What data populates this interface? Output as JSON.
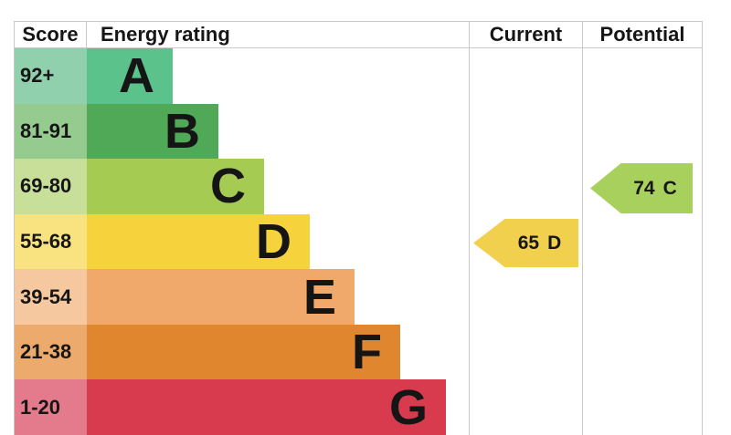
{
  "header": {
    "score": "Score",
    "rating": "Energy rating",
    "current": "Current",
    "potential": "Potential"
  },
  "bands": [
    {
      "letter": "A",
      "score": "92+",
      "bar_color": "#5cc28c",
      "score_color": "#90d0ac"
    },
    {
      "letter": "B",
      "score": "81-91",
      "bar_color": "#4fa957",
      "score_color": "#96cb90"
    },
    {
      "letter": "C",
      "score": "69-80",
      "bar_color": "#a5cb52",
      "score_color": "#c8df9a"
    },
    {
      "letter": "D",
      "score": "55-68",
      "bar_color": "#f6d23c",
      "score_color": "#f9e381"
    },
    {
      "letter": "E",
      "score": "39-54",
      "bar_color": "#f1a96b",
      "score_color": "#f6c89f"
    },
    {
      "letter": "F",
      "score": "21-38",
      "bar_color": "#e0862e",
      "score_color": "#ecab6d"
    },
    {
      "letter": "G",
      "score": "1-20",
      "bar_color": "#d83b4d",
      "score_color": "#e37b8d"
    }
  ],
  "current": {
    "value": "65",
    "band": "D",
    "color": "#f1d04e"
  },
  "potential": {
    "value": "74",
    "band": "C",
    "color": "#a8d05c"
  },
  "border_color": "#c9c9c9",
  "chart_data": {
    "type": "bar",
    "title": "Energy rating",
    "column_headers": [
      "Score",
      "Energy rating",
      "Current",
      "Potential"
    ],
    "categories": [
      "A",
      "B",
      "C",
      "D",
      "E",
      "F",
      "G"
    ],
    "score_ranges": [
      "92+",
      "81-91",
      "69-80",
      "55-68",
      "39-54",
      "21-38",
      "1-20"
    ],
    "bar_lengths_relative": [
      1,
      2,
      3,
      4,
      5,
      6,
      7
    ],
    "band_colors": [
      "#5cc28c",
      "#4fa957",
      "#a5cb52",
      "#f6d23c",
      "#f1a96b",
      "#e0862e",
      "#d83b4d"
    ],
    "current": {
      "score": 65,
      "band": "D"
    },
    "potential": {
      "score": 74,
      "band": "C"
    },
    "legend_position": "none",
    "grid": false
  }
}
